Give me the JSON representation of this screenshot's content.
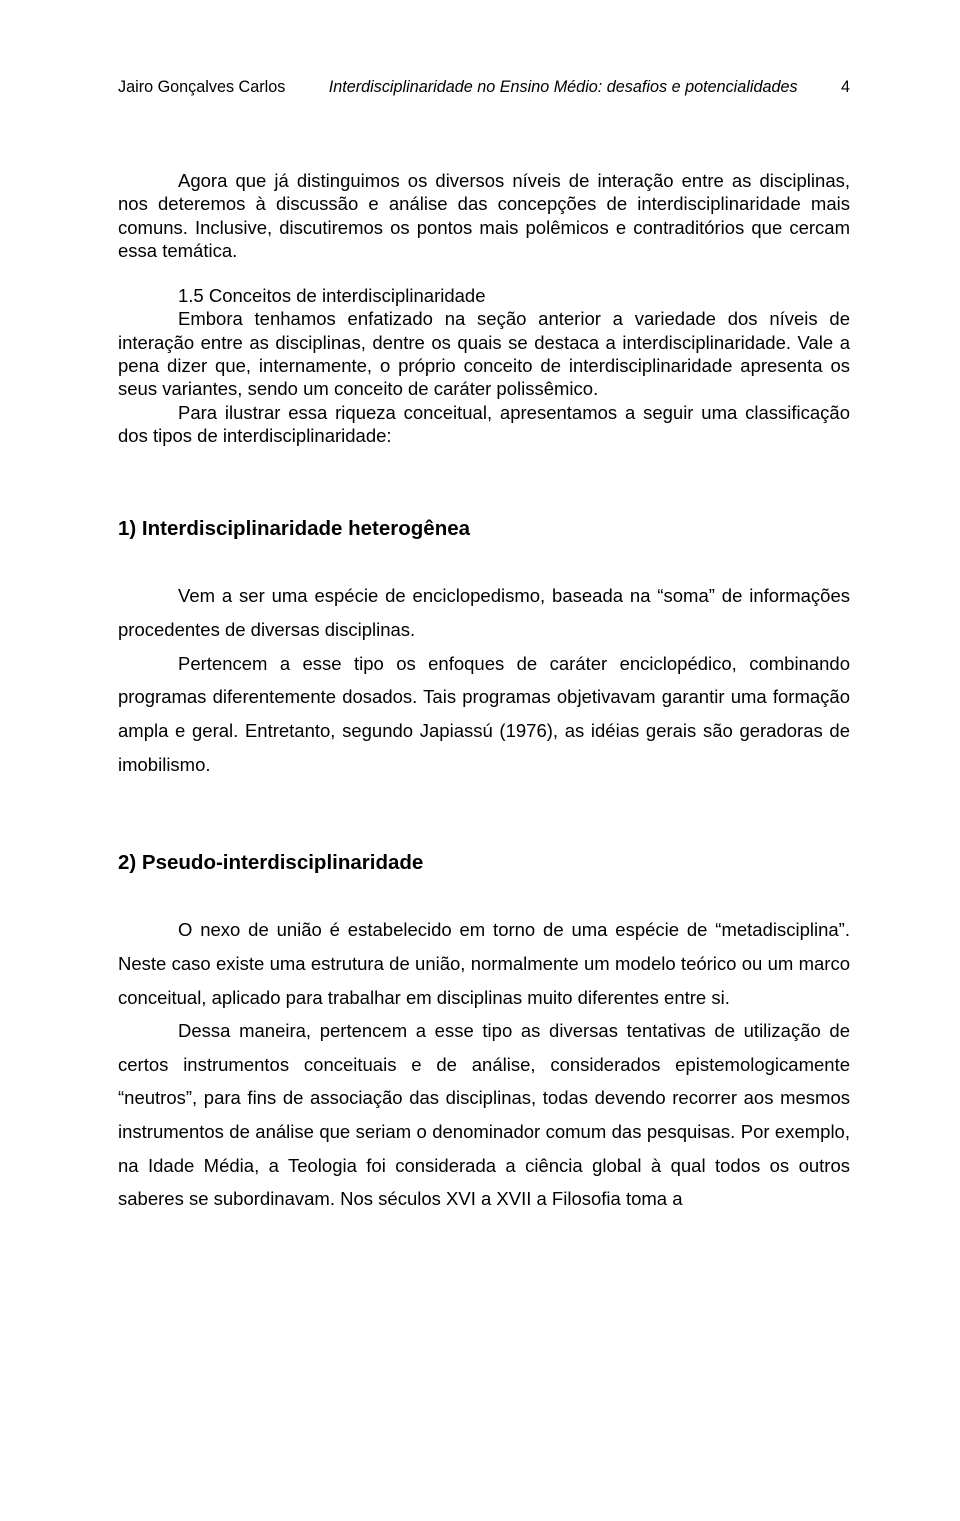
{
  "header": {
    "author": "Jairo Gonçalves Carlos",
    "title_italic": "Interdisciplinaridade no Ensino Médio: desafios e potencialidades",
    "page_number": "4"
  },
  "intro": {
    "p1": "Agora que já distinguimos os diversos níveis de interação entre as disciplinas, nos deteremos à discussão e análise das concepções de interdisciplinaridade mais comuns. Inclusive, discutiremos os pontos mais polêmicos e contraditórios que cercam essa temática."
  },
  "sec15": {
    "heading_inline": "1.5 Conceitos de interdisciplinaridade",
    "p1": "Embora tenhamos enfatizado na seção anterior a variedade dos níveis de interação entre as disciplinas, dentre os quais se destaca a interdisciplinaridade. Vale a pena dizer que, internamente, o próprio conceito de interdisciplinaridade apresenta os seus variantes, sendo um conceito de caráter polissêmico.",
    "p2": "Para ilustrar essa riqueza conceitual, apresentamos a seguir uma classificação dos tipos de interdisciplinaridade:"
  },
  "type1": {
    "title": "1) Interdisciplinaridade heterogênea",
    "p1": "Vem a ser uma espécie de enciclopedismo, baseada na “soma” de informações procedentes de diversas disciplinas.",
    "p2": "Pertencem a esse tipo os enfoques de caráter enciclopédico, combinando programas diferentemente dosados. Tais programas objetivavam garantir uma formação ampla e geral. Entretanto, segundo Japiassú (1976), as idéias gerais são geradoras de imobilismo."
  },
  "type2": {
    "title": "2) Pseudo-interdisciplinaridade",
    "p1": "O nexo de união é estabelecido em torno de uma espécie de “metadisciplina”. Neste caso existe uma estrutura de união, normalmente um modelo teórico ou um marco conceitual, aplicado para trabalhar em disciplinas muito diferentes entre si.",
    "p2": "Dessa maneira, pertencem a esse tipo as diversas tentativas de utilização de certos instrumentos conceituais e de análise, considerados epistemologicamente “neutros”, para fins de associação das disciplinas, todas devendo recorrer aos mesmos instrumentos de análise que seriam o denominador comum das pesquisas. Por exemplo, na Idade Média, a Teologia foi considerada a ciência global à qual todos os outros saberes se subordinavam. Nos séculos XVI a XVII a Filosofia toma a"
  }
}
